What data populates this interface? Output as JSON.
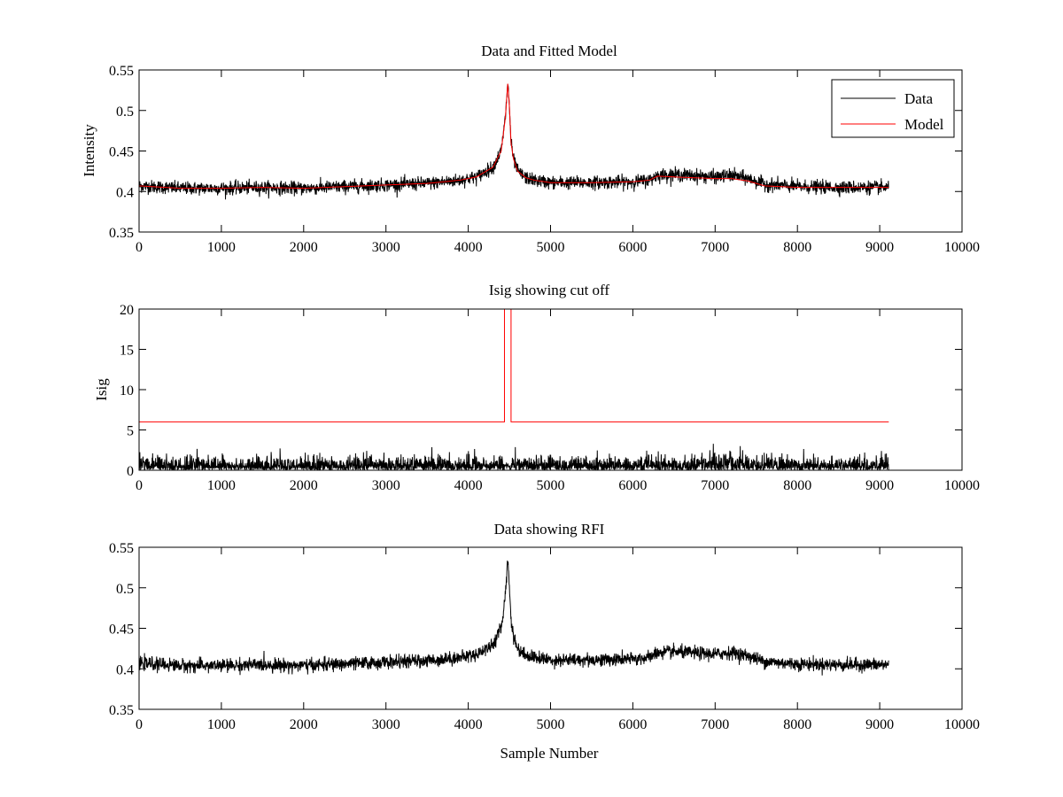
{
  "colors": {
    "data": "#000000",
    "model": "#ff0000",
    "background": "#ffffff",
    "axes": "#000000"
  },
  "chart_data": [
    {
      "type": "line",
      "title": "Data and Fitted Model",
      "xlabel": "",
      "ylabel": "Intensity",
      "xlim": [
        0,
        10000
      ],
      "ylim": [
        0.35,
        0.55
      ],
      "xticks": [
        0,
        1000,
        2000,
        3000,
        4000,
        5000,
        6000,
        7000,
        8000,
        9000,
        10000
      ],
      "yticks": [
        0.35,
        0.4,
        0.45,
        0.5,
        0.55
      ],
      "ytick_labels": [
        "0.35",
        "0.4",
        "0.45",
        "0.5",
        "0.55"
      ],
      "legend": {
        "position": "top-right",
        "entries": [
          "Data",
          "Model"
        ]
      },
      "series": [
        {
          "name": "Data",
          "color": "#000000",
          "noisy": true,
          "noise_amplitude": 0.004,
          "x": [
            0,
            500,
            1000,
            1500,
            2000,
            2500,
            3000,
            3500,
            3900,
            4100,
            4300,
            4400,
            4450,
            4480,
            4500,
            4520,
            4550,
            4600,
            4700,
            4800,
            5000,
            5500,
            6000,
            6200,
            6300,
            6500,
            7000,
            7200,
            7400,
            7600,
            8000,
            8500,
            9110
          ],
          "y": [
            0.407,
            0.404,
            0.404,
            0.405,
            0.404,
            0.406,
            0.408,
            0.41,
            0.414,
            0.418,
            0.43,
            0.45,
            0.49,
            0.535,
            0.505,
            0.46,
            0.44,
            0.425,
            0.417,
            0.414,
            0.411,
            0.411,
            0.412,
            0.414,
            0.42,
            0.421,
            0.418,
            0.42,
            0.416,
            0.409,
            0.406,
            0.405,
            0.405
          ]
        },
        {
          "name": "Model",
          "color": "#ff0000",
          "noisy": false,
          "x": [
            0,
            500,
            1000,
            1500,
            2000,
            2500,
            3000,
            3500,
            3900,
            4100,
            4300,
            4400,
            4450,
            4480,
            4500,
            4520,
            4550,
            4600,
            4700,
            4800,
            5000,
            5500,
            6000,
            6200,
            6300,
            6500,
            7000,
            7200,
            7400,
            7600,
            8000,
            8500,
            9110
          ],
          "y": [
            0.407,
            0.404,
            0.404,
            0.405,
            0.404,
            0.406,
            0.408,
            0.41,
            0.414,
            0.418,
            0.43,
            0.45,
            0.49,
            0.533,
            0.505,
            0.46,
            0.44,
            0.425,
            0.417,
            0.414,
            0.411,
            0.411,
            0.412,
            0.414,
            0.419,
            0.418,
            0.416,
            0.416,
            0.413,
            0.407,
            0.405,
            0.405,
            0.405
          ]
        }
      ]
    },
    {
      "type": "line",
      "title": "Isig showing cut off",
      "xlabel": "",
      "ylabel": "Isig",
      "xlim": [
        0,
        10000
      ],
      "ylim": [
        0,
        20
      ],
      "xticks": [
        0,
        1000,
        2000,
        3000,
        4000,
        5000,
        6000,
        7000,
        8000,
        9000,
        10000
      ],
      "yticks": [
        0,
        5,
        10,
        15,
        20
      ],
      "ytick_labels": [
        "0",
        "5",
        "10",
        "15",
        "20"
      ],
      "series": [
        {
          "name": "Isig",
          "color": "#000000",
          "noisy": true,
          "kind": "abs-noise",
          "x": [
            0,
            9110
          ],
          "y": [
            0.8,
            0.8
          ]
        },
        {
          "name": "Cut off",
          "color": "#ff0000",
          "noisy": false,
          "x": [
            0,
            4440,
            4440,
            4520,
            4520,
            9110
          ],
          "y": [
            6,
            6,
            20,
            20,
            6,
            6
          ]
        }
      ]
    },
    {
      "type": "line",
      "title": "Data showing RFI",
      "xlabel": "Sample Number",
      "ylabel": "",
      "xlim": [
        0,
        10000
      ],
      "ylim": [
        0.35,
        0.55
      ],
      "xticks": [
        0,
        1000,
        2000,
        3000,
        4000,
        5000,
        6000,
        7000,
        8000,
        9000,
        10000
      ],
      "yticks": [
        0.35,
        0.4,
        0.45,
        0.5,
        0.55
      ],
      "ytick_labels": [
        "0.35",
        "0.4",
        "0.45",
        "0.5",
        "0.55"
      ],
      "series": [
        {
          "name": "Data",
          "color": "#000000",
          "noisy": true,
          "noise_amplitude": 0.004,
          "x": [
            0,
            500,
            1000,
            1500,
            2000,
            2500,
            3000,
            3500,
            3900,
            4100,
            4300,
            4400,
            4450,
            4480,
            4500,
            4520,
            4550,
            4600,
            4700,
            4800,
            5000,
            5500,
            6000,
            6200,
            6300,
            6500,
            7000,
            7200,
            7400,
            7600,
            8000,
            8500,
            9110
          ],
          "y": [
            0.407,
            0.404,
            0.404,
            0.405,
            0.404,
            0.406,
            0.408,
            0.41,
            0.414,
            0.418,
            0.43,
            0.45,
            0.49,
            0.535,
            0.505,
            0.46,
            0.44,
            0.425,
            0.417,
            0.414,
            0.411,
            0.411,
            0.412,
            0.414,
            0.42,
            0.421,
            0.418,
            0.42,
            0.416,
            0.409,
            0.406,
            0.405,
            0.405
          ]
        }
      ]
    }
  ]
}
